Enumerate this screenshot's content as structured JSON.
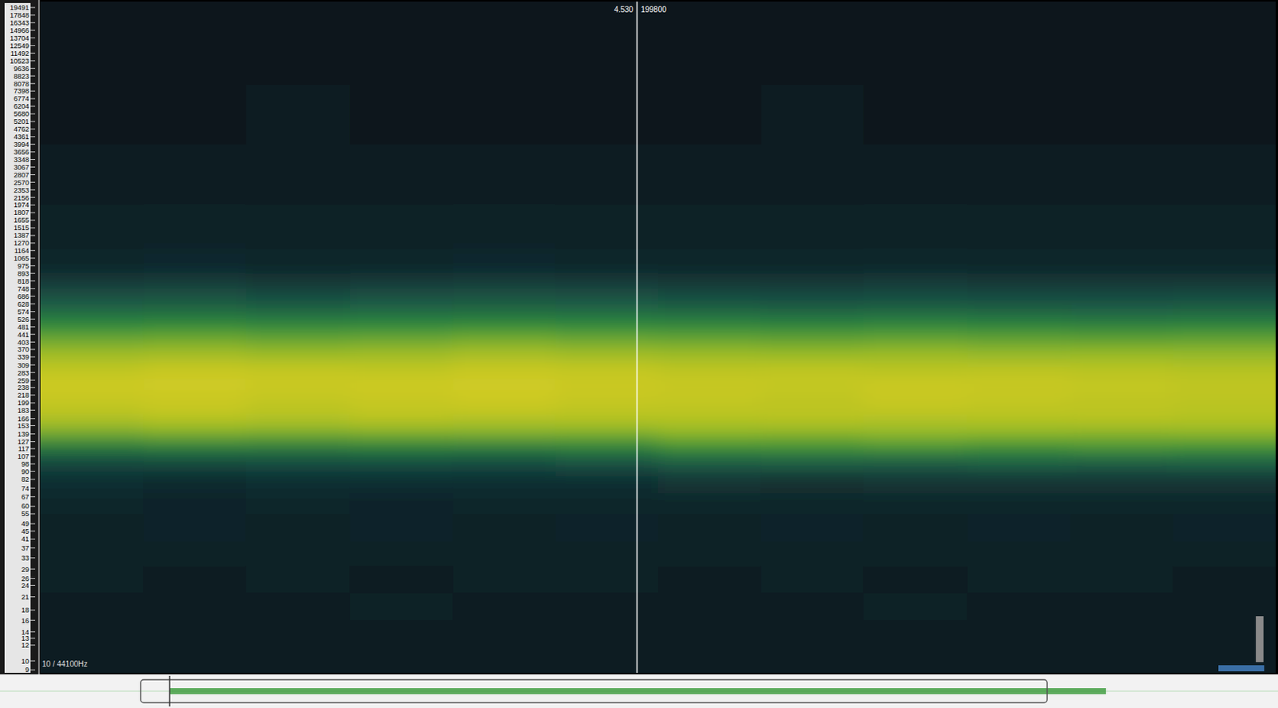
{
  "chart_data": {
    "type": "spectrogram",
    "log": "y",
    "tick_labels": "y",
    "xlim": [
      0,
      9.38
    ],
    "ylim": [
      8.7,
      20900
    ],
    "yticks": [
      19491,
      17848,
      16343,
      14966,
      13704,
      12549,
      11492,
      10523,
      9636,
      8823,
      8078,
      7398,
      6774,
      6204,
      5680,
      5201,
      4762,
      4361,
      3994,
      3656,
      3348,
      3067,
      2807,
      2570,
      2353,
      2156,
      1974,
      1807,
      1655,
      1515,
      1387,
      1270,
      1164,
      1065,
      975,
      893,
      818,
      748,
      686,
      628,
      574,
      526,
      481,
      441,
      403,
      370,
      339,
      309,
      283,
      259,
      238,
      218,
      199,
      183,
      166,
      153,
      139,
      127,
      117,
      107,
      98,
      90,
      82,
      74,
      67,
      60,
      55,
      49,
      45,
      41,
      37,
      33,
      29,
      26,
      24,
      21,
      18,
      16,
      14,
      13,
      12,
      10,
      9
    ],
    "x_bins": [
      0,
      0.78,
      1.56,
      2.35,
      3.13,
      3.91,
      4.69,
      5.47,
      6.25,
      7.04,
      7.82,
      8.6,
      9.38
    ],
    "y_bins": [
      8.7,
      12,
      16,
      22,
      30,
      40,
      55,
      70,
      90,
      110,
      130,
      150,
      175,
      200,
      230,
      270,
      320,
      380,
      450,
      530,
      620,
      750,
      900,
      1200,
      2000,
      4000,
      8000,
      20900
    ],
    "zlim": [
      0,
      1
    ],
    "z": [
      [
        0.07,
        0.08,
        0.07,
        0.08,
        0.08,
        0.07,
        0.08,
        0.07,
        0.08,
        0.07,
        0.08,
        0.07
      ],
      [
        0.08,
        0.07,
        0.09,
        0.08,
        0.07,
        0.08,
        0.09,
        0.08,
        0.07,
        0.08,
        0.09,
        0.08
      ],
      [
        0.09,
        0.08,
        0.09,
        0.1,
        0.08,
        0.09,
        0.08,
        0.09,
        0.1,
        0.08,
        0.09,
        0.09
      ],
      [
        0.1,
        0.09,
        0.1,
        0.09,
        0.1,
        0.1,
        0.09,
        0.1,
        0.09,
        0.1,
        0.1,
        0.09
      ],
      [
        0.1,
        0.11,
        0.1,
        0.1,
        0.11,
        0.1,
        0.11,
        0.1,
        0.11,
        0.1,
        0.1,
        0.11
      ],
      [
        0.11,
        0.12,
        0.11,
        0.12,
        0.11,
        0.12,
        0.11,
        0.12,
        0.11,
        0.12,
        0.11,
        0.12
      ],
      [
        0.13,
        0.12,
        0.13,
        0.12,
        0.13,
        0.13,
        0.14,
        0.13,
        0.14,
        0.13,
        0.14,
        0.13
      ],
      [
        0.17,
        0.16,
        0.17,
        0.18,
        0.17,
        0.18,
        0.2,
        0.19,
        0.2,
        0.21,
        0.2,
        0.21
      ],
      [
        0.28,
        0.29,
        0.3,
        0.31,
        0.3,
        0.32,
        0.36,
        0.37,
        0.36,
        0.38,
        0.37,
        0.38
      ],
      [
        0.48,
        0.5,
        0.49,
        0.51,
        0.5,
        0.52,
        0.58,
        0.59,
        0.6,
        0.58,
        0.6,
        0.59
      ],
      [
        0.68,
        0.7,
        0.69,
        0.7,
        0.71,
        0.7,
        0.74,
        0.73,
        0.75,
        0.74,
        0.73,
        0.74
      ],
      [
        0.82,
        0.84,
        0.83,
        0.85,
        0.83,
        0.84,
        0.84,
        0.85,
        0.83,
        0.84,
        0.85,
        0.84
      ],
      [
        0.88,
        0.9,
        0.87,
        0.89,
        0.9,
        0.88,
        0.88,
        0.87,
        0.89,
        0.88,
        0.87,
        0.86
      ],
      [
        0.9,
        0.91,
        0.89,
        0.9,
        0.92,
        0.9,
        0.89,
        0.88,
        0.9,
        0.89,
        0.88,
        0.87
      ],
      [
        0.92,
        0.93,
        0.91,
        0.92,
        0.93,
        0.91,
        0.9,
        0.89,
        0.91,
        0.9,
        0.89,
        0.88
      ],
      [
        0.88,
        0.9,
        0.89,
        0.88,
        0.9,
        0.89,
        0.87,
        0.88,
        0.86,
        0.87,
        0.86,
        0.85
      ],
      [
        0.8,
        0.81,
        0.79,
        0.8,
        0.82,
        0.8,
        0.79,
        0.78,
        0.79,
        0.77,
        0.78,
        0.77
      ],
      [
        0.68,
        0.69,
        0.67,
        0.68,
        0.7,
        0.68,
        0.67,
        0.66,
        0.67,
        0.66,
        0.65,
        0.66
      ],
      [
        0.55,
        0.56,
        0.54,
        0.55,
        0.56,
        0.55,
        0.54,
        0.53,
        0.54,
        0.53,
        0.52,
        0.53
      ],
      [
        0.42,
        0.43,
        0.41,
        0.42,
        0.43,
        0.42,
        0.41,
        0.4,
        0.41,
        0.4,
        0.39,
        0.4
      ],
      [
        0.32,
        0.33,
        0.31,
        0.32,
        0.33,
        0.32,
        0.31,
        0.3,
        0.31,
        0.3,
        0.3,
        0.31
      ],
      [
        0.22,
        0.23,
        0.21,
        0.22,
        0.23,
        0.22,
        0.21,
        0.21,
        0.22,
        0.21,
        0.2,
        0.21
      ],
      [
        0.14,
        0.15,
        0.14,
        0.14,
        0.15,
        0.14,
        0.14,
        0.13,
        0.14,
        0.13,
        0.13,
        0.14
      ],
      [
        0.1,
        0.11,
        0.1,
        0.1,
        0.11,
        0.1,
        0.1,
        0.1,
        0.11,
        0.1,
        0.1,
        0.1
      ],
      [
        0.08,
        0.08,
        0.08,
        0.09,
        0.08,
        0.08,
        0.08,
        0.08,
        0.08,
        0.08,
        0.09,
        0.08
      ],
      [
        0.06,
        0.06,
        0.07,
        0.06,
        0.06,
        0.06,
        0.06,
        0.07,
        0.06,
        0.06,
        0.06,
        0.06
      ],
      [
        0.05,
        0.05,
        0.05,
        0.05,
        0.05,
        0.05,
        0.05,
        0.05,
        0.05,
        0.05,
        0.05,
        0.05
      ]
    ],
    "cursor": {
      "value": 4.53,
      "label": "4.530"
    },
    "cursor_sample": 199800,
    "footer": "10 / 44100Hz"
  }
}
